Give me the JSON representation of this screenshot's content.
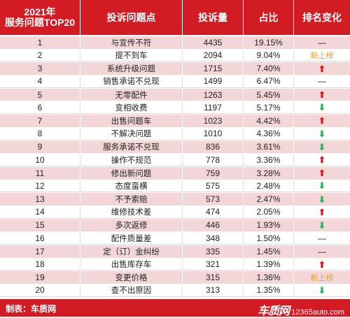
{
  "header": {
    "col1": "2021年\n服务问题TOP20",
    "col2": "投诉问题点",
    "col3": "投诉量",
    "col4": "占比",
    "col5": "排名变化"
  },
  "rows": [
    {
      "rank": "1",
      "issue": "与宣传不符",
      "count": "4435",
      "share": "19.15%",
      "change": "—"
    },
    {
      "rank": "2",
      "issue": "提不到车",
      "count": "2094",
      "share": "9.04%",
      "change": "新上榜"
    },
    {
      "rank": "3",
      "issue": "系统升级问题",
      "count": "1715",
      "share": "7.40%",
      "change": "up"
    },
    {
      "rank": "4",
      "issue": "销售承诺不兑现",
      "count": "1499",
      "share": "6.47%",
      "change": "—"
    },
    {
      "rank": "5",
      "issue": "无零配件",
      "count": "1263",
      "share": "5.45%",
      "change": "up"
    },
    {
      "rank": "6",
      "issue": "变相收费",
      "count": "1197",
      "share": "5.17%",
      "change": "down"
    },
    {
      "rank": "7",
      "issue": "出售问题车",
      "count": "1023",
      "share": "4.42%",
      "change": "up"
    },
    {
      "rank": "8",
      "issue": "不解决问题",
      "count": "1010",
      "share": "4.36%",
      "change": "down"
    },
    {
      "rank": "9",
      "issue": "服务承诺不兑现",
      "count": "836",
      "share": "3.61%",
      "change": "down"
    },
    {
      "rank": "10",
      "issue": "操作不规范",
      "count": "778",
      "share": "3.36%",
      "change": "up"
    },
    {
      "rank": "11",
      "issue": "修出新问题",
      "count": "759",
      "share": "3.28%",
      "change": "up"
    },
    {
      "rank": "12",
      "issue": "态度蛮横",
      "count": "575",
      "share": "2.48%",
      "change": "down"
    },
    {
      "rank": "13",
      "issue": "不予索赔",
      "count": "573",
      "share": "2.47%",
      "change": "down"
    },
    {
      "rank": "14",
      "issue": "维修技术差",
      "count": "474",
      "share": "2.05%",
      "change": "up"
    },
    {
      "rank": "15",
      "issue": "多次返修",
      "count": "446",
      "share": "1.93%",
      "change": "down"
    },
    {
      "rank": "16",
      "issue": "配件质量差",
      "count": "348",
      "share": "1.50%",
      "change": "—"
    },
    {
      "rank": "17",
      "issue": "定（订）金纠纷",
      "count": "335",
      "share": "1.45%",
      "change": "—"
    },
    {
      "rank": "18",
      "issue": "出售库存车",
      "count": "321",
      "share": "1.39%",
      "change": "up"
    },
    {
      "rank": "19",
      "issue": "变更价格",
      "count": "315",
      "share": "1.36%",
      "change": "新上榜"
    },
    {
      "rank": "20",
      "issue": "查不出原因",
      "count": "313",
      "share": "1.35%",
      "change": "down"
    }
  ],
  "footer": {
    "label": "制表：车质网",
    "logo_text": "车质网",
    "logo_domain": "12365auto.com"
  },
  "colors": {
    "header_bg": "#d21b23",
    "odd_row_bg": "#f2d6d8",
    "up_arrow": "#d21b23",
    "down_arrow": "#27b35a",
    "new_entry": "#f0a11d"
  },
  "icons": {
    "up": "red-up-arrow-icon",
    "down": "green-down-arrow-icon"
  }
}
